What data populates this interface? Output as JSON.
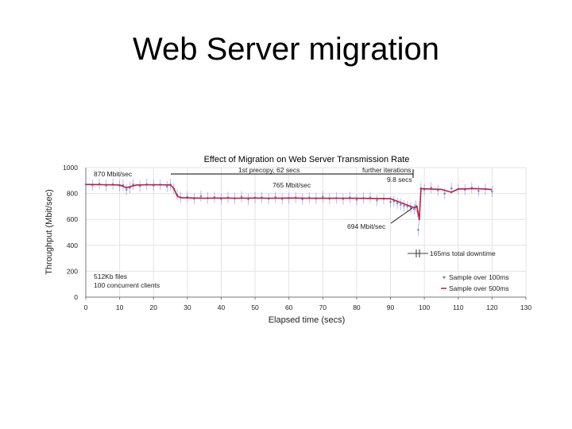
{
  "slide": {
    "title": "Web Server migration"
  },
  "chart_data": {
    "type": "line",
    "title": "Effect of Migration on Web Server Transmission Rate",
    "xlabel": "Elapsed time (secs)",
    "ylabel": "Throughput (Mbit/sec)",
    "xlim": [
      0,
      130
    ],
    "ylim": [
      0,
      1000
    ],
    "xticks": [
      "0",
      "10",
      "20",
      "30",
      "40",
      "50",
      "60",
      "70",
      "80",
      "90",
      "100",
      "110",
      "120",
      "130"
    ],
    "yticks": [
      "0",
      "200",
      "400",
      "600",
      "800",
      "1000"
    ],
    "grid": true,
    "colors": {
      "sample_100ms": "#6f8fd8",
      "sample_500ms": "#c8183c",
      "axis": "#777777"
    },
    "series": [
      {
        "name": "Sample over 100ms",
        "x": [
          0,
          2,
          4,
          6,
          8,
          10,
          11,
          12,
          13,
          14,
          16,
          18,
          20,
          22,
          24,
          25,
          26,
          27,
          28,
          30,
          32,
          34,
          36,
          38,
          40,
          42,
          44,
          46,
          48,
          50,
          52,
          54,
          56,
          58,
          60,
          62,
          64,
          66,
          68,
          70,
          72,
          74,
          76,
          78,
          80,
          82,
          84,
          86,
          88,
          90,
          91,
          92,
          93,
          94,
          95,
          96,
          97,
          97.5,
          98,
          98.2,
          98.5,
          99,
          100,
          102,
          104,
          106,
          108,
          110,
          112,
          114,
          116,
          118,
          120
        ],
        "y": [
          870,
          865,
          875,
          862,
          872,
          860,
          865,
          830,
          845,
          870,
          858,
          872,
          862,
          868,
          855,
          870,
          835,
          790,
          770,
          775,
          760,
          780,
          765,
          772,
          758,
          770,
          762,
          775,
          755,
          768,
          770,
          760,
          772,
          758,
          765,
          770,
          755,
          768,
          762,
          775,
          760,
          765,
          758,
          770,
          752,
          765,
          770,
          748,
          760,
          735,
          740,
          725,
          715,
          705,
          700,
          690,
          680,
          705,
          660,
          520,
          600,
          840,
          830,
          845,
          825,
          800,
          840,
          835,
          830,
          845,
          820,
          835,
          815
        ]
      },
      {
        "name": "Sample over 500ms",
        "x": [
          0,
          5,
          10,
          12,
          15,
          20,
          25,
          26,
          27,
          28,
          30,
          35,
          40,
          45,
          50,
          55,
          60,
          65,
          70,
          75,
          80,
          85,
          90,
          92,
          94,
          96,
          97,
          97.8,
          98.5,
          99,
          102,
          105,
          108,
          110,
          112,
          115,
          118,
          120
        ],
        "y": [
          870,
          868,
          866,
          845,
          866,
          868,
          866,
          840,
          780,
          768,
          766,
          764,
          765,
          764,
          765,
          764,
          765,
          764,
          763,
          764,
          763,
          762,
          760,
          740,
          720,
          700,
          690,
          700,
          600,
          838,
          835,
          832,
          810,
          835,
          836,
          838,
          835,
          830
        ]
      }
    ],
    "annotations": [
      {
        "text": "870 Mbit/sec"
      },
      {
        "text": "1st precopy, 62 secs"
      },
      {
        "text": "further iterations"
      },
      {
        "text": "9.8 secs"
      },
      {
        "text": "765 Mbit/sec"
      },
      {
        "text": "694 Mbit/sec"
      },
      {
        "text": "165ms total downtime"
      },
      {
        "text": "512Kb files"
      },
      {
        "text": "100 concurrent clients"
      }
    ],
    "legend_placement": "bottom-right"
  }
}
